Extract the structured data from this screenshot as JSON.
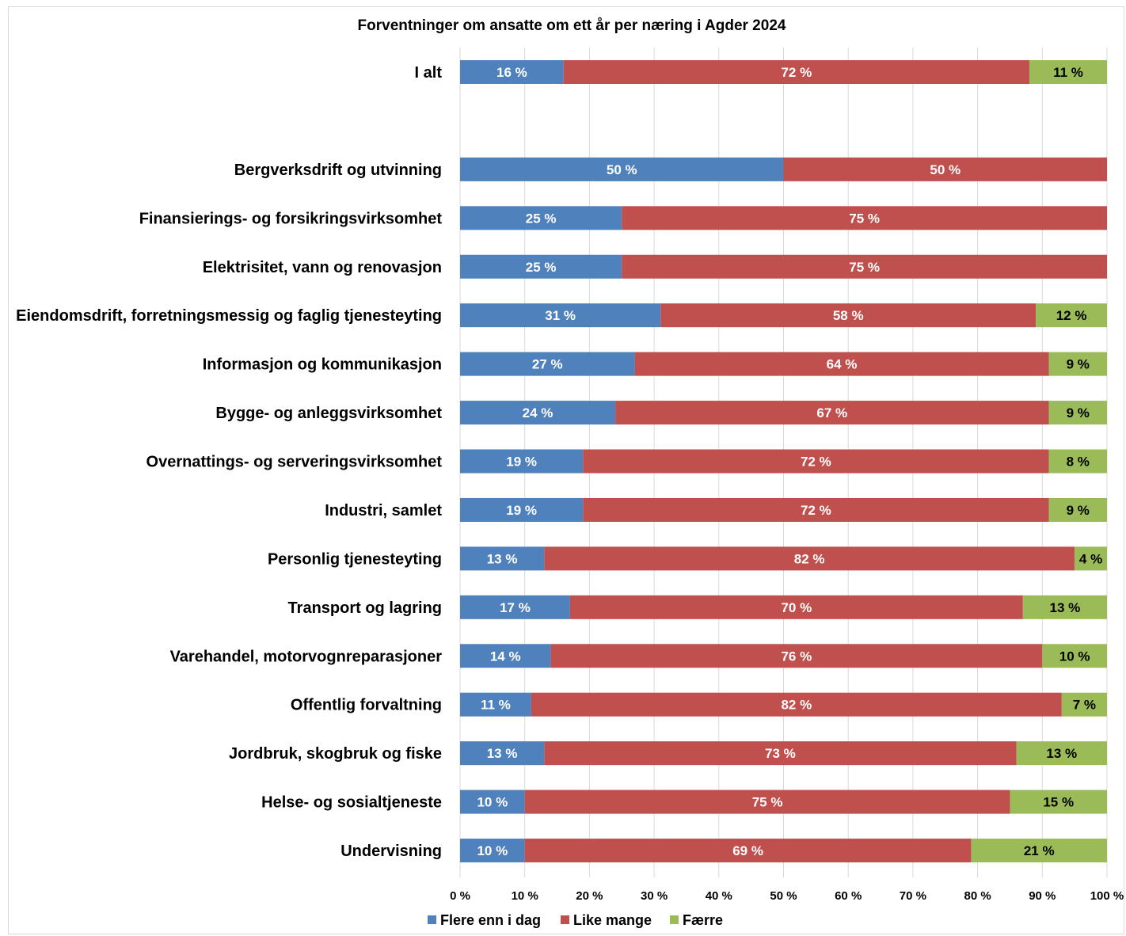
{
  "chart_data": {
    "type": "bar",
    "orientation": "horizontal",
    "stacked": "percent",
    "title": "Forventninger om ansatte om ett år per næring i Agder 2024",
    "categories": [
      "I alt",
      "",
      "Bergverksdrift og utvinning",
      "Finansierings- og forsikringsvirksomhet",
      "Elektrisitet, vann og renovasjon",
      "Eiendomsdrift, forretningsmessig og faglig tjenesteyting",
      "Informasjon og kommunikasjon",
      "Bygge- og anleggsvirksomhet",
      "Overnattings- og serveringsvirksomhet",
      "Industri, samlet",
      "Personlig tjenesteyting",
      "Transport og lagring",
      "Varehandel, motorvognreparasjoner",
      "Offentlig forvaltning",
      "Jordbruk, skogbruk og fiske",
      "Helse- og sosialtjeneste",
      "Undervisning"
    ],
    "series": [
      {
        "name": "Flere enn i dag",
        "color": "#4f81bd",
        "label_color": "#ffffff",
        "values": [
          16,
          null,
          50,
          25,
          25,
          31,
          27,
          24,
          19,
          19,
          13,
          17,
          14,
          11,
          13,
          10,
          10
        ]
      },
      {
        "name": "Like mange",
        "color": "#c0504d",
        "label_color": "#ffffff",
        "values": [
          72,
          null,
          50,
          75,
          75,
          58,
          64,
          67,
          72,
          72,
          82,
          70,
          76,
          82,
          73,
          75,
          69
        ]
      },
      {
        "name": "Færre",
        "color": "#9bbb59",
        "label_color": "#000000",
        "values": [
          11,
          null,
          0,
          0,
          0,
          12,
          9,
          9,
          8,
          9,
          4,
          13,
          10,
          7,
          13,
          15,
          21
        ]
      }
    ],
    "value_suffix": " %",
    "x_ticks": [
      "0 %",
      "10 %",
      "20 %",
      "30 %",
      "40 %",
      "50 %",
      "60 %",
      "70 %",
      "80 %",
      "90 %",
      "100 %"
    ],
    "xlim": [
      0,
      100
    ],
    "grid": "vertical",
    "legend": "bottom",
    "xlabel": "",
    "ylabel": ""
  }
}
